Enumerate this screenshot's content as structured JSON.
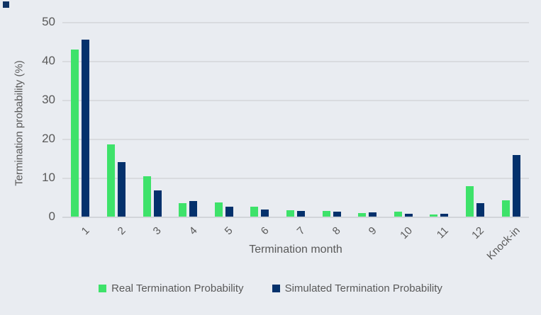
{
  "colors": {
    "background": "#e9ecf1",
    "grid": "#d9dbdf",
    "axis_line": "#d2d5da",
    "text": "#595959",
    "corner_marker": "#0e3264"
  },
  "chart_data": {
    "type": "bar",
    "categories": [
      "1",
      "2",
      "3",
      "4",
      "5",
      "6",
      "7",
      "8",
      "9",
      "10",
      "11",
      "12",
      "Knock-in"
    ],
    "series": [
      {
        "name": "Real Termination Probability",
        "color": "#3ee26a",
        "values": [
          43.0,
          18.5,
          10.3,
          3.5,
          3.6,
          2.6,
          1.6,
          1.5,
          1.0,
          1.3,
          0.6,
          7.9,
          4.1
        ]
      },
      {
        "name": "Simulated Termination Probability",
        "color": "#04316c",
        "values": [
          45.5,
          14.0,
          6.7,
          4.0,
          2.6,
          1.9,
          1.5,
          1.2,
          1.1,
          0.8,
          0.7,
          3.4,
          15.8
        ]
      }
    ],
    "xlabel": "Termination month",
    "ylabel": "Termination probability (%)",
    "ylim": [
      0,
      50
    ],
    "yticks": [
      0,
      10,
      20,
      30,
      40,
      50
    ],
    "grid": true,
    "legend_position": "bottom",
    "xtick_rotation_deg": 45
  }
}
